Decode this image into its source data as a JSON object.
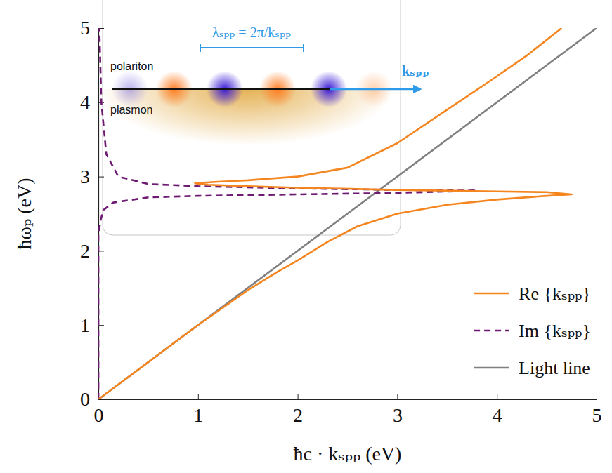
{
  "chart_data": {
    "type": "line",
    "x_label": "ħc · kₛₚₚ (eV)",
    "y_label": "ħωₚ (eV)",
    "xlim": [
      0,
      5
    ],
    "ylim": [
      0,
      5
    ],
    "xticks": [
      0,
      1,
      2,
      3,
      4,
      5
    ],
    "yticks": [
      0,
      1,
      2,
      3,
      4,
      5
    ],
    "grid": false,
    "legend": "lower right",
    "series": [
      {
        "name": "Re {kₛₚₚ}",
        "color": "#f5861f",
        "line_style": "solid",
        "x": [
          0,
          0.5,
          1.0,
          1.5,
          1.8,
          2.0,
          2.3,
          2.6,
          3.0,
          3.5,
          4.0,
          4.5,
          4.75,
          4.5,
          4.0,
          3.0,
          2.0,
          1.5,
          1.1,
          0.97,
          1.2,
          1.5,
          2.0,
          2.5,
          3.0,
          3.5,
          4.0,
          4.3,
          4.65
        ],
        "values": [
          0,
          0.5,
          1.0,
          1.47,
          1.72,
          1.87,
          2.12,
          2.33,
          2.5,
          2.62,
          2.69,
          2.74,
          2.76,
          2.79,
          2.8,
          2.82,
          2.85,
          2.87,
          2.89,
          2.91,
          2.93,
          2.95,
          3.0,
          3.12,
          3.45,
          3.9,
          4.35,
          4.63,
          5.0
        ]
      },
      {
        "name": "Im {kₛₚₚ}",
        "color": "#6e1a73",
        "line_style": "dashed",
        "x": [
          0,
          0,
          0.02,
          0.05,
          0.15,
          0.5,
          1.0,
          2.0,
          3.0,
          3.8,
          3.0,
          2.0,
          1.0,
          0.5,
          0.2,
          0.08,
          0.03,
          0.01
        ],
        "values": [
          0,
          2.2,
          2.4,
          2.55,
          2.65,
          2.72,
          2.74,
          2.76,
          2.78,
          2.81,
          2.82,
          2.84,
          2.87,
          2.9,
          3.0,
          3.3,
          4.0,
          5.0
        ]
      },
      {
        "name": "Light line",
        "color": "#808080",
        "line_style": "solid",
        "x": [
          0,
          5
        ],
        "values": [
          0,
          5
        ]
      }
    ],
    "annotations": [
      {
        "text": "polariton"
      },
      {
        "text": "plasmon"
      },
      {
        "text": "λₛₚₚ = 2π/kₛₚₚ"
      },
      {
        "text": "kₛₚₚ"
      }
    ]
  }
}
